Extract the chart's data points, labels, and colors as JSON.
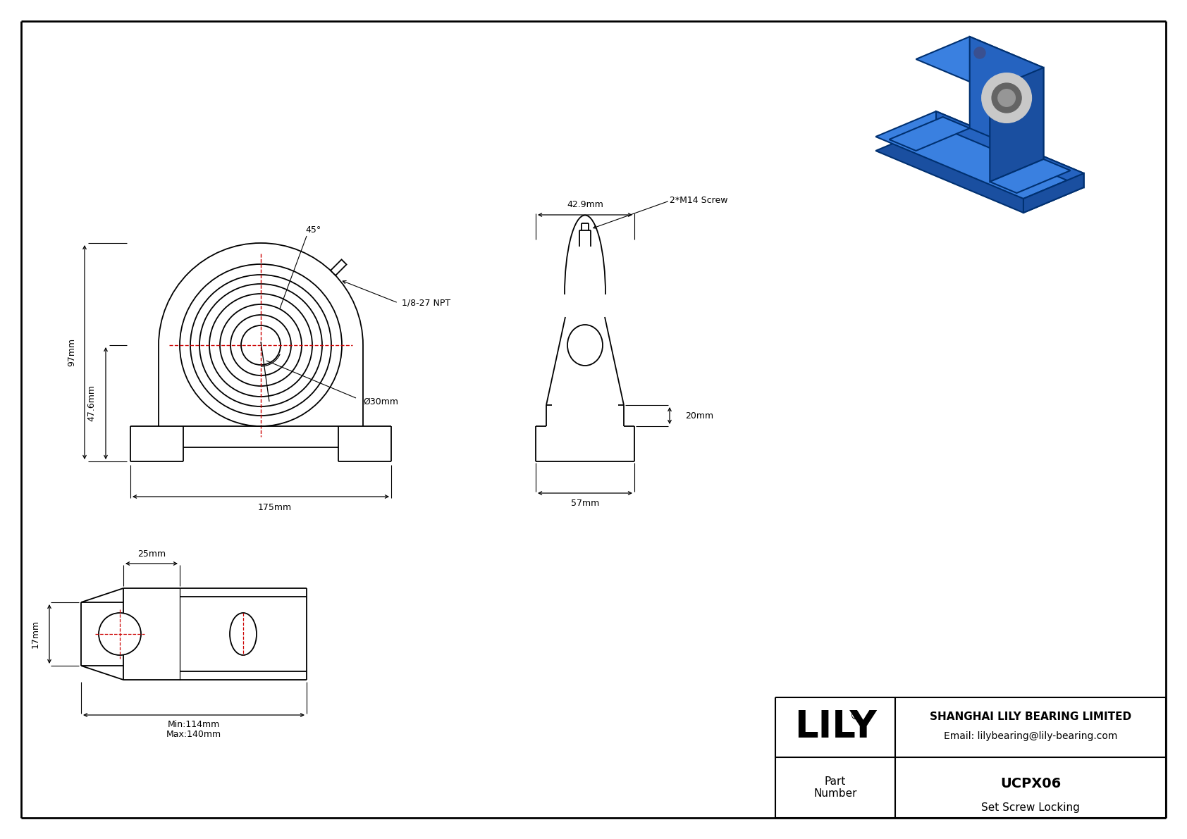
{
  "bg_color": "#ffffff",
  "line_color": "#000000",
  "red_color": "#cc0000",
  "dim_color": "#000000",
  "title_box": {
    "lily_text": "LILY",
    "company": "SHANGHAI LILY BEARING LIMITED",
    "email": "Email: lilybearing@lily-bearing.com",
    "part_label": "Part\nNumber",
    "part_number": "UCPX06",
    "part_desc": "Set Screw Locking"
  },
  "dims": {
    "height_97": "97mm",
    "height_47": "47.6mm",
    "width_175": "175mm",
    "dia_30": "Ø30mm",
    "angle_45": "45°",
    "label_npt": "1/8-27 NPT",
    "label_screw": "2*M14 Screw",
    "width_42": "42.9mm",
    "height_20": "20mm",
    "width_57": "57mm",
    "width_25": "25mm",
    "height_17": "17mm",
    "width_min": "Min:114mm",
    "width_max": "Max:140mm"
  }
}
